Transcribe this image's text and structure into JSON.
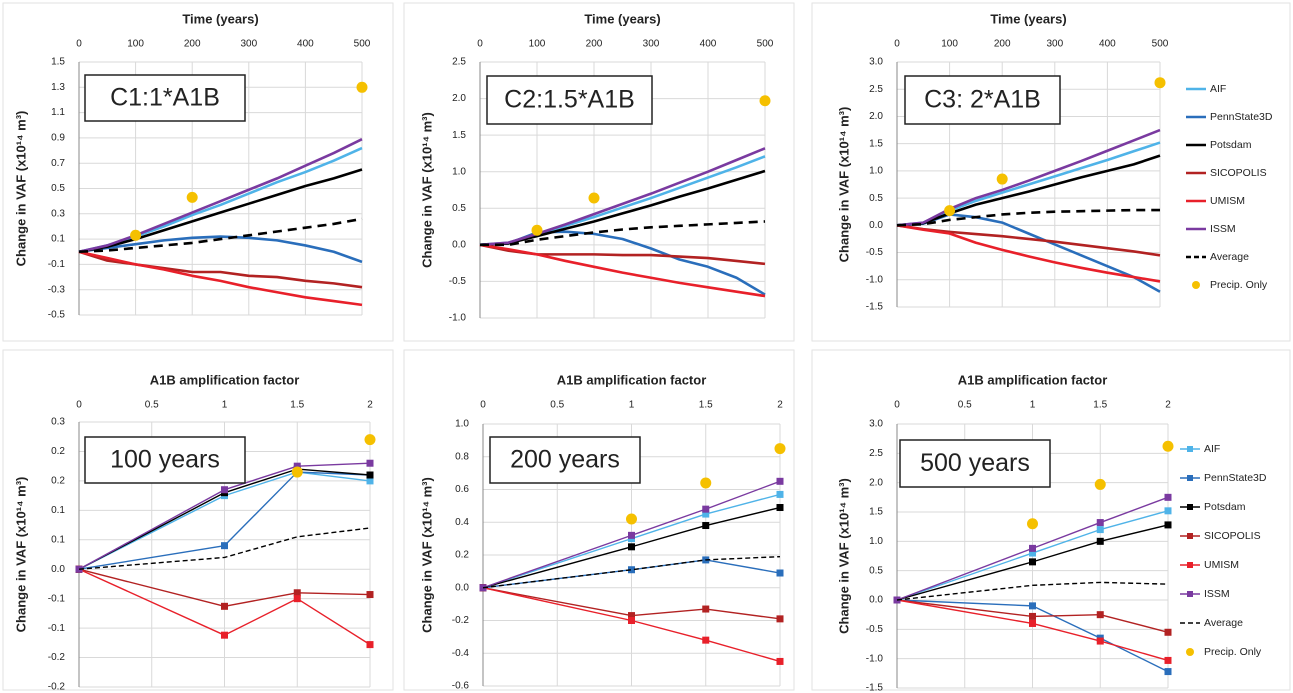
{
  "chart_data": [
    {
      "type": "line",
      "xlabel": "Time (years)",
      "ylabel": "Change in VAF (x10¹⁴ m³)",
      "annotation": "C1:1*A1B",
      "x": [
        0,
        50,
        100,
        150,
        200,
        250,
        300,
        350,
        400,
        450,
        500
      ],
      "xlim": [
        0,
        500
      ],
      "xticks": [
        0,
        100,
        200,
        300,
        400,
        500
      ],
      "ylim": [
        -0.5,
        1.5
      ],
      "yticks": [
        -0.5,
        -0.3,
        -0.1,
        0.1,
        0.3,
        0.5,
        0.7,
        0.9,
        1.1,
        1.3,
        1.5
      ],
      "grid": true,
      "series": [
        {
          "name": "AIF",
          "color": "#4fb3e8",
          "values": [
            0,
            0.05,
            0.12,
            0.2,
            0.29,
            0.37,
            0.46,
            0.55,
            0.63,
            0.72,
            0.82
          ]
        },
        {
          "name": "PennState3D",
          "color": "#2a6ebb",
          "values": [
            0,
            0.03,
            0.06,
            0.09,
            0.11,
            0.12,
            0.11,
            0.09,
            0.05,
            0.0,
            -0.08
          ]
        },
        {
          "name": "Potsdam",
          "color": "#000000",
          "values": [
            0,
            0.04,
            0.1,
            0.17,
            0.24,
            0.31,
            0.38,
            0.45,
            0.52,
            0.58,
            0.65
          ]
        },
        {
          "name": "SICOPOLIS",
          "color": "#b22222",
          "values": [
            0,
            -0.07,
            -0.1,
            -0.13,
            -0.16,
            -0.16,
            -0.19,
            -0.2,
            -0.23,
            -0.25,
            -0.28
          ]
        },
        {
          "name": "UMISM",
          "color": "#e8202a",
          "values": [
            0,
            -0.05,
            -0.1,
            -0.14,
            -0.19,
            -0.23,
            -0.28,
            -0.32,
            -0.36,
            -0.39,
            -0.42
          ]
        },
        {
          "name": "ISSM",
          "color": "#7a3aa0",
          "values": [
            0,
            0.05,
            0.13,
            0.22,
            0.31,
            0.4,
            0.49,
            0.58,
            0.68,
            0.78,
            0.89
          ]
        },
        {
          "name": "Average",
          "color": "#000000",
          "dash": "dashed",
          "values": [
            0,
            0.01,
            0.03,
            0.05,
            0.07,
            0.1,
            0.13,
            0.16,
            0.19,
            0.22,
            0.26
          ]
        },
        {
          "name": "Precip. Only",
          "color": "#f5c000",
          "mode": "markers",
          "values": [
            null,
            null,
            0.13,
            null,
            0.43,
            null,
            null,
            null,
            null,
            null,
            1.3
          ]
        }
      ]
    },
    {
      "type": "line",
      "xlabel": "Time (years)",
      "ylabel": "Change in VAF (x10¹⁴ m³)",
      "annotation": "C2:1.5*A1B",
      "x": [
        0,
        50,
        100,
        150,
        200,
        250,
        300,
        350,
        400,
        450,
        500
      ],
      "xlim": [
        0,
        500
      ],
      "xticks": [
        0,
        100,
        200,
        300,
        400,
        500
      ],
      "ylim": [
        -1.0,
        2.5
      ],
      "yticks": [
        {
          "value": -1,
          "label": "-1.0"
        },
        -0.5,
        {
          "value": 0,
          "label": "0.0"
        },
        0.5,
        {
          "value": 1,
          "label": "1.0"
        },
        1.5,
        {
          "value": 2,
          "label": "2.0"
        },
        2.5
      ],
      "grid": true,
      "series": [
        {
          "name": "AIF",
          "color": "#4fb3e8",
          "values": [
            0,
            0.03,
            0.14,
            0.26,
            0.38,
            0.51,
            0.64,
            0.78,
            0.92,
            1.06,
            1.21
          ]
        },
        {
          "name": "PennState3D",
          "color": "#2a6ebb",
          "values": [
            0,
            0.02,
            0.17,
            0.18,
            0.15,
            0.08,
            -0.05,
            -0.2,
            -0.3,
            -0.45,
            -0.68
          ]
        },
        {
          "name": "Potsdam",
          "color": "#000000",
          "values": [
            0,
            0.02,
            0.12,
            0.22,
            0.32,
            0.43,
            0.54,
            0.66,
            0.77,
            0.89,
            1.01
          ]
        },
        {
          "name": "SICOPOLIS",
          "color": "#b22222",
          "values": [
            0,
            -0.08,
            -0.13,
            -0.13,
            -0.13,
            -0.14,
            -0.14,
            -0.16,
            -0.18,
            -0.22,
            -0.26
          ]
        },
        {
          "name": "UMISM",
          "color": "#e8202a",
          "values": [
            0,
            -0.06,
            -0.13,
            -0.22,
            -0.3,
            -0.38,
            -0.45,
            -0.52,
            -0.58,
            -0.64,
            -0.7
          ]
        },
        {
          "name": "ISSM",
          "color": "#7a3aa0",
          "values": [
            0,
            0.03,
            0.15,
            0.28,
            0.42,
            0.56,
            0.7,
            0.85,
            1.0,
            1.16,
            1.32
          ]
        },
        {
          "name": "Average",
          "color": "#000000",
          "dash": "dashed",
          "values": [
            0,
            0.0,
            0.07,
            0.12,
            0.17,
            0.21,
            0.24,
            0.26,
            0.28,
            0.3,
            0.32
          ]
        },
        {
          "name": "Precip. Only",
          "color": "#f5c000",
          "mode": "markers",
          "values": [
            null,
            null,
            0.2,
            null,
            0.64,
            null,
            null,
            null,
            null,
            null,
            1.97
          ]
        }
      ]
    },
    {
      "type": "line",
      "xlabel": "Time (years)",
      "ylabel": "Change in VAF (x10¹⁴ m³)",
      "annotation": "C3: 2*A1B",
      "legend": "right",
      "x": [
        0,
        50,
        100,
        150,
        200,
        250,
        300,
        350,
        400,
        450,
        500
      ],
      "xlim": [
        0,
        500
      ],
      "xticks": [
        0,
        100,
        200,
        300,
        400,
        500
      ],
      "ylim": [
        -1.5,
        3.0
      ],
      "yticks": [
        -1.5,
        {
          "value": -1,
          "label": "-1.0"
        },
        -0.5,
        {
          "value": 0,
          "label": "0.0"
        },
        0.5,
        {
          "value": 1,
          "label": "1.0"
        },
        1.5,
        {
          "value": 2,
          "label": "2.0"
        },
        2.5,
        {
          "value": 3,
          "label": "3.0"
        }
      ],
      "grid": true,
      "series": [
        {
          "name": "AIF",
          "color": "#4fb3e8",
          "values": [
            0,
            0.05,
            0.27,
            0.45,
            0.6,
            0.75,
            0.9,
            1.05,
            1.2,
            1.36,
            1.52
          ]
        },
        {
          "name": "PennState3D",
          "color": "#2a6ebb",
          "values": [
            0,
            0.03,
            0.2,
            0.15,
            0.05,
            -0.15,
            -0.35,
            -0.55,
            -0.75,
            -0.95,
            -1.22
          ]
        },
        {
          "name": "Potsdam",
          "color": "#000000",
          "values": [
            0,
            0.04,
            0.22,
            0.38,
            0.5,
            0.62,
            0.75,
            0.88,
            1.0,
            1.12,
            1.28
          ]
        },
        {
          "name": "SICOPOLIS",
          "color": "#b22222",
          "values": [
            0,
            -0.07,
            -0.12,
            -0.16,
            -0.2,
            -0.25,
            -0.3,
            -0.36,
            -0.42,
            -0.48,
            -0.55
          ]
        },
        {
          "name": "UMISM",
          "color": "#e8202a",
          "values": [
            0,
            -0.08,
            -0.15,
            -0.32,
            -0.45,
            -0.57,
            -0.68,
            -0.78,
            -0.87,
            -0.95,
            -1.03
          ]
        },
        {
          "name": "ISSM",
          "color": "#7a3aa0",
          "values": [
            0,
            0.05,
            0.3,
            0.5,
            0.65,
            0.82,
            1.0,
            1.18,
            1.37,
            1.56,
            1.75
          ]
        },
        {
          "name": "Average",
          "color": "#000000",
          "dash": "dashed",
          "values": [
            0,
            0.02,
            0.1,
            0.15,
            0.2,
            0.23,
            0.25,
            0.26,
            0.27,
            0.28,
            0.28
          ]
        },
        {
          "name": "Precip. Only",
          "color": "#f5c000",
          "mode": "markers",
          "values": [
            null,
            null,
            0.27,
            null,
            0.85,
            null,
            null,
            null,
            null,
            null,
            2.62
          ]
        }
      ]
    },
    {
      "type": "line",
      "xlabel": "A1B amplification factor",
      "ylabel": "Change in VAF (x10¹⁴ m³)",
      "annotation": "100 years",
      "x": [
        0,
        1,
        1.5,
        2
      ],
      "xlim": [
        0,
        2
      ],
      "xticks": [
        0,
        0.5,
        1,
        1.5,
        2
      ],
      "ylim": [
        -0.2,
        0.25
      ],
      "yticks": [
        -0.2,
        {
          "value": -0.15,
          "label": "-0.2"
        },
        -0.1,
        {
          "value": -0.05,
          "label": "-0.1"
        },
        {
          "value": 0,
          "label": "0.0"
        },
        {
          "value": 0.05,
          "label": "0.1"
        },
        0.1,
        {
          "value": 0.15,
          "label": "0.2"
        },
        0.2,
        {
          "value": 0.25,
          "label": "0.3"
        }
      ],
      "grid": true,
      "series": [
        {
          "name": "AIF",
          "color": "#4fb3e8",
          "marker": "square",
          "values": [
            0,
            0.125,
            0.165,
            0.15
          ]
        },
        {
          "name": "PennState3D",
          "color": "#2a6ebb",
          "marker": "square",
          "values": [
            0,
            0.04,
            0.165,
            0.16
          ]
        },
        {
          "name": "Potsdam",
          "color": "#000000",
          "marker": "square",
          "values": [
            0,
            0.13,
            0.17,
            0.16
          ]
        },
        {
          "name": "SICOPOLIS",
          "color": "#b22222",
          "marker": "square",
          "values": [
            0,
            -0.063,
            -0.04,
            -0.043
          ]
        },
        {
          "name": "UMISM",
          "color": "#e8202a",
          "marker": "square",
          "values": [
            0,
            -0.112,
            -0.05,
            -0.128
          ]
        },
        {
          "name": "ISSM",
          "color": "#7a3aa0",
          "marker": "square",
          "values": [
            0,
            0.135,
            0.175,
            0.18
          ]
        },
        {
          "name": "Average",
          "color": "#000000",
          "dash": "dashed",
          "values": [
            0,
            0.02,
            0.055,
            0.07
          ]
        },
        {
          "name": "Precip. Only",
          "color": "#f5c000",
          "mode": "markers",
          "values": [
            null,
            0.2,
            0.165,
            0.22
          ]
        }
      ]
    },
    {
      "type": "line",
      "xlabel": "A1B amplification factor",
      "ylabel": "Change in VAF (x10¹⁴ m³)",
      "annotation": "200 years",
      "x": [
        0,
        1,
        1.5,
        2
      ],
      "xlim": [
        0,
        2
      ],
      "xticks": [
        0,
        0.5,
        1,
        1.5,
        2
      ],
      "ylim": [
        -0.6,
        1.0
      ],
      "yticks": [
        -0.6,
        -0.4,
        -0.2,
        {
          "value": 0,
          "label": "0.0"
        },
        0.2,
        0.4,
        0.6,
        0.8,
        {
          "value": 1,
          "label": "1.0"
        }
      ],
      "grid": true,
      "series": [
        {
          "name": "AIF",
          "color": "#4fb3e8",
          "marker": "square",
          "values": [
            0,
            0.3,
            0.45,
            0.57
          ]
        },
        {
          "name": "PennState3D",
          "color": "#2a6ebb",
          "marker": "square",
          "values": [
            0,
            0.11,
            0.17,
            0.09
          ]
        },
        {
          "name": "Potsdam",
          "color": "#000000",
          "marker": "square",
          "values": [
            0,
            0.25,
            0.38,
            0.49
          ]
        },
        {
          "name": "SICOPOLIS",
          "color": "#b22222",
          "marker": "square",
          "values": [
            0,
            -0.17,
            -0.13,
            -0.19
          ]
        },
        {
          "name": "UMISM",
          "color": "#e8202a",
          "marker": "square",
          "values": [
            0,
            -0.2,
            -0.32,
            -0.45
          ]
        },
        {
          "name": "ISSM",
          "color": "#7a3aa0",
          "marker": "square",
          "values": [
            0,
            0.32,
            0.48,
            0.65
          ]
        },
        {
          "name": "Average",
          "color": "#000000",
          "dash": "dashed",
          "values": [
            0,
            0.11,
            0.17,
            0.19
          ]
        },
        {
          "name": "Precip. Only",
          "color": "#f5c000",
          "mode": "markers",
          "values": [
            null,
            0.42,
            0.64,
            0.85
          ]
        }
      ]
    },
    {
      "type": "line",
      "xlabel": "A1B amplification factor",
      "ylabel": "Change in VAF (x10¹⁴ m³)",
      "annotation": "500 years",
      "legend": "right",
      "x": [
        0,
        1,
        1.5,
        2
      ],
      "xlim": [
        0,
        2
      ],
      "xticks": [
        0,
        0.5,
        1,
        1.5,
        2
      ],
      "ylim": [
        -1.5,
        3.0
      ],
      "yticks": [
        -1.5,
        {
          "value": -1,
          "label": "-1.0"
        },
        -0.5,
        {
          "value": 0,
          "label": "0.0"
        },
        0.5,
        {
          "value": 1,
          "label": "1.0"
        },
        1.5,
        {
          "value": 2,
          "label": "2.0"
        },
        2.5,
        {
          "value": 3,
          "label": "3.0"
        }
      ],
      "grid": true,
      "series": [
        {
          "name": "AIF",
          "color": "#4fb3e8",
          "marker": "square",
          "values": [
            0,
            0.8,
            1.2,
            1.52
          ]
        },
        {
          "name": "PennState3D",
          "color": "#2a6ebb",
          "marker": "square",
          "values": [
            0,
            -0.1,
            -0.65,
            -1.22
          ]
        },
        {
          "name": "Potsdam",
          "color": "#000000",
          "marker": "square",
          "values": [
            0,
            0.65,
            1.0,
            1.28
          ]
        },
        {
          "name": "SICOPOLIS",
          "color": "#b22222",
          "marker": "square",
          "values": [
            0,
            -0.28,
            -0.25,
            -0.55
          ]
        },
        {
          "name": "UMISM",
          "color": "#e8202a",
          "marker": "square",
          "values": [
            0,
            -0.4,
            -0.7,
            -1.03
          ]
        },
        {
          "name": "ISSM",
          "color": "#7a3aa0",
          "marker": "square",
          "values": [
            0,
            0.88,
            1.32,
            1.75
          ]
        },
        {
          "name": "Average",
          "color": "#000000",
          "dash": "dashed",
          "values": [
            0,
            0.25,
            0.3,
            0.27
          ]
        },
        {
          "name": "Precip. Only",
          "color": "#f5c000",
          "mode": "markers",
          "values": [
            null,
            1.3,
            1.97,
            2.62
          ]
        }
      ]
    }
  ]
}
